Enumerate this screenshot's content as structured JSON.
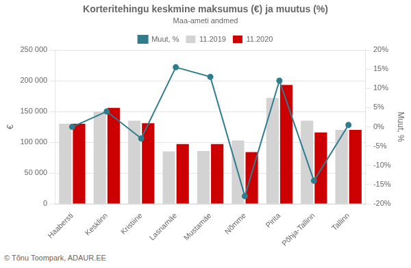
{
  "chart_data": {
    "type": "bar",
    "title": "Korteritehingu keskmine maksumus (€) ja muutus (%)",
    "subtitle": "Maa-ameti andmed",
    "ylabel": "€",
    "y2label": "Muut, %",
    "annotations": [
      "© Tõnu Toompark, ADAUR.EE"
    ],
    "categories": [
      "Haabersti",
      "Kesklinn",
      "Kristiine",
      "Lasnamäe",
      "Mustamäe",
      "Nõmme",
      "Pirita",
      "Põhja-Tallinn",
      "Tallinn"
    ],
    "series": [
      {
        "name": "11.2019",
        "type": "bar",
        "color": "#d3d3d3",
        "values": [
          130000,
          150000,
          135000,
          85000,
          86000,
          103000,
          172000,
          135000,
          120000
        ]
      },
      {
        "name": "11.2020",
        "type": "bar",
        "color": "#cc0000",
        "values": [
          130000,
          156000,
          131000,
          97000,
          97000,
          84000,
          193000,
          116000,
          120000
        ]
      },
      {
        "name": "Muut, %",
        "type": "line",
        "axis": "y2",
        "color": "#2e7d8c",
        "marker": "circle",
        "line_style": "solid",
        "values": [
          0.0,
          4.0,
          -3.0,
          15.5,
          13.0,
          -18.0,
          12.0,
          -14.0,
          0.5
        ]
      }
    ],
    "ylim": [
      0,
      250000
    ],
    "yticks": [
      0,
      {
        "value": 50000,
        "label": "50 000"
      },
      {
        "value": 100000,
        "label": "100 000"
      },
      {
        "value": 150000,
        "label": "150 000"
      },
      {
        "value": 200000,
        "label": "200 000"
      },
      {
        "value": 250000,
        "label": "250 000"
      }
    ],
    "y2lim": [
      -20,
      20
    ],
    "y2ticks": [
      {
        "value": -20,
        "label": "-20%"
      },
      {
        "value": -15,
        "label": "-15%"
      },
      {
        "value": -10,
        "label": "-10%"
      },
      {
        "value": -5,
        "label": "-5%"
      },
      {
        "value": 0,
        "label": "0%"
      },
      {
        "value": 5,
        "label": "5%"
      },
      {
        "value": 10,
        "label": "10%"
      },
      {
        "value": 15,
        "label": "15%"
      },
      {
        "value": 20,
        "label": "20%"
      }
    ],
    "grid": true,
    "legend": "top"
  }
}
